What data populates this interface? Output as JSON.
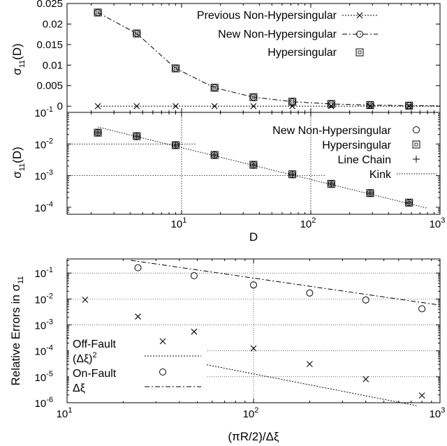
{
  "chart_data": [
    {
      "type": "line",
      "panel": "top",
      "ylabel": "σ11(D)",
      "x_scale": "log",
      "y_scale": "linear",
      "xlim": [
        1.3,
        1000
      ],
      "ylim": [
        -0.0015,
        0.025
      ],
      "yticks": [
        "0",
        "0.005",
        "0.01",
        "0.015",
        "0.02",
        "0.025"
      ],
      "grid": false,
      "legend_position": "top-right",
      "series": [
        {
          "name": "Previous Non-Hypersingular",
          "style": "dotted line with x markers",
          "x": [
            2.25,
            4.5,
            9,
            18,
            36,
            72,
            144,
            288,
            576
          ],
          "y": [
            0,
            0,
            0,
            0,
            0,
            0,
            0,
            0,
            0
          ]
        },
        {
          "name": "New Non-Hypersingular",
          "style": "dash-dot line with circle markers",
          "x": [
            2.25,
            4.5,
            9,
            18,
            36,
            72,
            144,
            288,
            576
          ],
          "y": [
            0.0228,
            0.0177,
            0.0092,
            0.0045,
            0.0022,
            0.0011,
            0.00055,
            0.00028,
            0.00014
          ]
        },
        {
          "name": "Hypersingular",
          "style": "square markers",
          "x": [
            2.25,
            4.5,
            9,
            18,
            36,
            72,
            144,
            288,
            576
          ],
          "y": [
            0.0228,
            0.0177,
            0.0092,
            0.0045,
            0.0022,
            0.0011,
            0.00055,
            0.00028,
            0.00014
          ]
        }
      ]
    },
    {
      "type": "line",
      "panel": "middle",
      "xlabel": "D",
      "ylabel": "σ11(D)",
      "x_scale": "log",
      "y_scale": "log",
      "xlim": [
        1.3,
        1000
      ],
      "ylim": [
        6e-05,
        0.1
      ],
      "xticks": [
        [
          "10",
          "1"
        ],
        [
          "10",
          "2"
        ],
        [
          "10",
          "3"
        ]
      ],
      "yticks": [
        [
          "10",
          "-1"
        ],
        [
          "10",
          "-2"
        ],
        [
          "10",
          "-3"
        ],
        [
          "10",
          "-4"
        ]
      ],
      "legend_position": "top-right",
      "series": [
        {
          "name": "New Non-Hypersingular",
          "style": "circle markers",
          "x": [
            2.25,
            4.5,
            9,
            18,
            36,
            72,
            144,
            288,
            576
          ],
          "y": [
            0.0228,
            0.0177,
            0.0092,
            0.0045,
            0.0022,
            0.0011,
            0.00055,
            0.00028,
            0.00014
          ]
        },
        {
          "name": "Hypersingular",
          "style": "square markers",
          "x": [
            2.25,
            4.5,
            9,
            18,
            36,
            72,
            144,
            288,
            576
          ],
          "y": [
            0.0228,
            0.0177,
            0.0092,
            0.0045,
            0.0022,
            0.0011,
            0.00055,
            0.00028,
            0.00014
          ]
        },
        {
          "name": "Line Chain",
          "style": "plus markers / fitted dotted line",
          "x": [
            2.25,
            800
          ],
          "y": [
            0.0345,
            9.3e-05
          ]
        },
        {
          "name": "Kink",
          "style": "dotted guide lines",
          "x": [
            10,
            100
          ],
          "y": [
            0.01,
            0.001
          ]
        }
      ]
    },
    {
      "type": "scatter",
      "panel": "bottom",
      "xlabel": "(πR/2)/Δξ",
      "ylabel": "Relative Errors in σ11",
      "x_scale": "log",
      "y_scale": "log",
      "xlim": [
        10,
        1000
      ],
      "ylim": [
        1e-06,
        0.35
      ],
      "xticks": [
        [
          "10",
          "1"
        ],
        [
          "10",
          "2"
        ],
        [
          "10",
          "3"
        ]
      ],
      "yticks": [
        [
          "10",
          "-1"
        ],
        [
          "10",
          "-2"
        ],
        [
          "10",
          "-3"
        ],
        [
          "10",
          "-4"
        ],
        [
          "10",
          "-5"
        ],
        [
          "10",
          "-6"
        ]
      ],
      "grid": "dotted at major decades",
      "legend_position": "left",
      "series": [
        {
          "name": "Off-Fault",
          "marker": "x",
          "x": [
            12.5,
            24,
            42,
            48,
            100,
            200,
            400,
            800
          ],
          "y": [
            0.0093,
            0.0021,
            0.00018,
            0.00055,
            0.000125,
            3.1e-05,
            8.1e-06,
            1.9e-06
          ]
        },
        {
          "name": "(Δξ)2",
          "style": "dotted line",
          "x": [
            10,
            760
          ],
          "y": [
            0.00033,
            7.5e-07
          ]
        },
        {
          "name": "On-Fault",
          "marker": "circle",
          "x": [
            24,
            48,
            100,
            200,
            400,
            800
          ],
          "y": [
            0.16,
            0.079,
            0.035,
            0.017,
            0.0092,
            0.0042
          ]
        },
        {
          "name": "Δξ",
          "style": "dash-dot line",
          "x": [
            22,
            1000
          ],
          "y": [
            0.31,
            0.0058
          ]
        }
      ]
    }
  ],
  "text": {
    "top_ylabel": "σ",
    "top_ylabel_sub": "11",
    "top_ylabel_tail": "(D)",
    "mid_ylabel": "σ",
    "mid_ylabel_sub": "11",
    "mid_ylabel_tail": "(D)",
    "mid_xlabel": "D",
    "bot_ylabel": "Relative Errors in σ",
    "bot_ylabel_sub": "11",
    "bot_xlabel": "(πR/2)/Δξ",
    "top_legend": [
      "Previous Non-Hypersingular",
      "New Non-Hypersingular",
      "Hypersingular"
    ],
    "mid_legend": [
      "New Non-Hypersingular",
      "Hypersingular",
      "Line Chain",
      "Kink"
    ],
    "bot_legend_offfault": "Off-Fault",
    "bot_legend_dxi2": "(Δξ)",
    "bot_legend_dxi2_sup": "2",
    "bot_legend_onfault": "On-Fault",
    "bot_legend_dxi": "Δξ"
  }
}
